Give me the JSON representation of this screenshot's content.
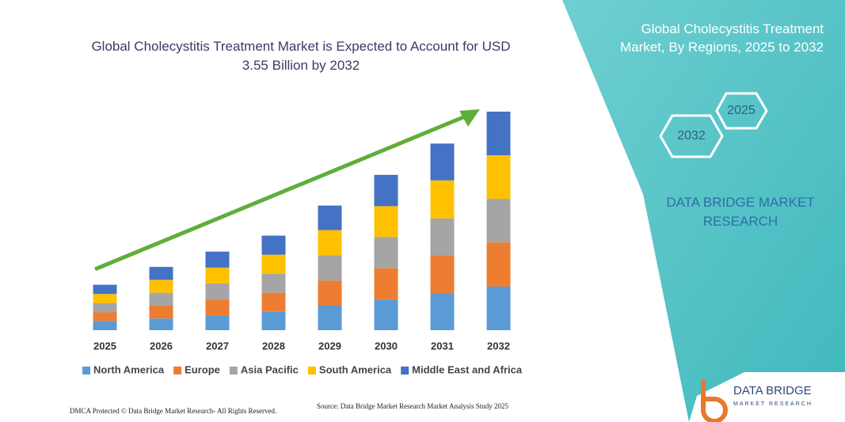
{
  "chart_data": {
    "type": "stacked-bar",
    "title": "Global Cholecystitis Treatment Market is Expected to Account for USD 3.55 Billion by 2032",
    "categories": [
      "2025",
      "2026",
      "2027",
      "2028",
      "2029",
      "2030",
      "2031",
      "2032"
    ],
    "series": [
      {
        "name": "North America",
        "color": "#5b9bd5",
        "values": [
          0.15,
          0.19,
          0.24,
          0.3,
          0.4,
          0.5,
          0.6,
          0.71
        ]
      },
      {
        "name": "Europe",
        "color": "#ed7d31",
        "values": [
          0.14,
          0.21,
          0.26,
          0.31,
          0.41,
          0.51,
          0.62,
          0.72
        ]
      },
      {
        "name": "Asia Pacific",
        "color": "#a5a5a5",
        "values": [
          0.15,
          0.21,
          0.26,
          0.31,
          0.41,
          0.51,
          0.6,
          0.71
        ]
      },
      {
        "name": "South America",
        "color": "#ffc000",
        "values": [
          0.15,
          0.21,
          0.26,
          0.31,
          0.41,
          0.5,
          0.62,
          0.71
        ]
      },
      {
        "name": "Middle East and Africa",
        "color": "#4472c4",
        "values": [
          0.15,
          0.21,
          0.26,
          0.31,
          0.4,
          0.51,
          0.6,
          0.71
        ]
      }
    ],
    "legend": "bottom"
  },
  "panel": {
    "title": "Global Cholecystitis Treatment Market, By Regions, 2025 to 2032",
    "hexagons": [
      "2025",
      "2032"
    ],
    "brand": "DATA BRIDGE MARKET RESEARCH"
  },
  "footer": {
    "left": "DMCA Protected © Data Bridge Market Research- All Rights Reserved.",
    "source": "Source: Data Bridge Market Research Market Analysis Study 2025"
  },
  "logo": {
    "name": "DATA BRIDGE",
    "tagline": "MARKET RESEARCH"
  }
}
